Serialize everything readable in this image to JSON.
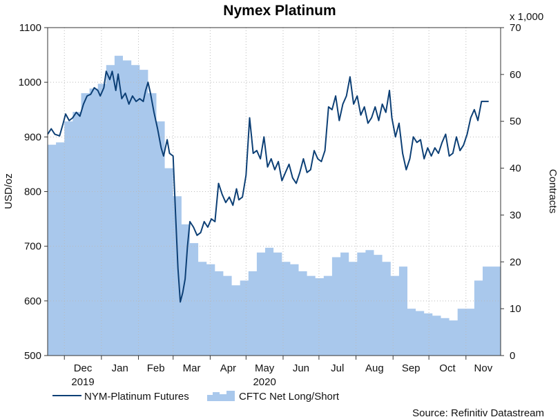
{
  "chart_data": {
    "type": "line",
    "title": "Nymex Platinum",
    "ylabel_left": "USD/oz",
    "ylabel_right": "Contracts",
    "right_multiplier": "x 1,000",
    "ylim_left": [
      500,
      1100
    ],
    "ylim_right": [
      0,
      70
    ],
    "yticks_left": [
      "500",
      "600",
      "700",
      "800",
      "900",
      "1000",
      "1100"
    ],
    "yticks_right": [
      "0",
      "10",
      "20",
      "30",
      "40",
      "50",
      "60",
      "70"
    ],
    "x_start": "2019-11-17",
    "x_end": "2020-11-30",
    "months": [
      {
        "label": "Dec",
        "date": "2019-12-01",
        "year": "2019"
      },
      {
        "label": "Jan",
        "date": "2020-01-01"
      },
      {
        "label": "Feb",
        "date": "2020-02-01"
      },
      {
        "label": "Mar",
        "date": "2020-03-01"
      },
      {
        "label": "Apr",
        "date": "2020-04-01"
      },
      {
        "label": "May",
        "date": "2020-05-01",
        "year": "2020"
      },
      {
        "label": "Jun",
        "date": "2020-06-01"
      },
      {
        "label": "Jul",
        "date": "2020-07-01"
      },
      {
        "label": "Aug",
        "date": "2020-08-01"
      },
      {
        "label": "Sep",
        "date": "2020-09-01"
      },
      {
        "label": "Oct",
        "date": "2020-10-01"
      },
      {
        "label": "Nov",
        "date": "2020-11-01"
      }
    ],
    "grid": true,
    "legend_position": "bottom",
    "source": "Source: Refinitiv Datastream",
    "series": [
      {
        "name": "NYM-Platinum Futures",
        "type": "line",
        "axis": "left",
        "color": "#0c3f75",
        "points": [
          [
            "2019-11-17",
            905
          ],
          [
            "2019-11-20",
            915
          ],
          [
            "2019-11-23",
            905
          ],
          [
            "2019-11-27",
            902
          ],
          [
            "2019-11-30",
            925
          ],
          [
            "2019-12-02",
            942
          ],
          [
            "2019-12-05",
            930
          ],
          [
            "2019-12-08",
            935
          ],
          [
            "2019-12-11",
            945
          ],
          [
            "2019-12-14",
            938
          ],
          [
            "2019-12-17",
            960
          ],
          [
            "2019-12-20",
            975
          ],
          [
            "2019-12-23",
            978
          ],
          [
            "2019-12-26",
            990
          ],
          [
            "2019-12-29",
            985
          ],
          [
            "2019-12-31",
            975
          ],
          [
            "2020-01-03",
            990
          ],
          [
            "2020-01-05",
            1020
          ],
          [
            "2020-01-08",
            1005
          ],
          [
            "2020-01-10",
            1020
          ],
          [
            "2020-01-13",
            985
          ],
          [
            "2020-01-15",
            1015
          ],
          [
            "2020-01-18",
            970
          ],
          [
            "2020-01-21",
            980
          ],
          [
            "2020-01-24",
            960
          ],
          [
            "2020-01-27",
            975
          ],
          [
            "2020-01-30",
            965
          ],
          [
            "2020-02-02",
            970
          ],
          [
            "2020-02-05",
            965
          ],
          [
            "2020-02-07",
            985
          ],
          [
            "2020-02-09",
            1000
          ],
          [
            "2020-02-11",
            980
          ],
          [
            "2020-02-14",
            945
          ],
          [
            "2020-02-17",
            915
          ],
          [
            "2020-02-20",
            880
          ],
          [
            "2020-02-22",
            865
          ],
          [
            "2020-02-25",
            895
          ],
          [
            "2020-02-27",
            870
          ],
          [
            "2020-03-01",
            865
          ],
          [
            "2020-03-03",
            760
          ],
          [
            "2020-03-05",
            660
          ],
          [
            "2020-03-07",
            598
          ],
          [
            "2020-03-09",
            615
          ],
          [
            "2020-03-11",
            640
          ],
          [
            "2020-03-13",
            700
          ],
          [
            "2020-03-15",
            745
          ],
          [
            "2020-03-18",
            735
          ],
          [
            "2020-03-21",
            720
          ],
          [
            "2020-03-24",
            725
          ],
          [
            "2020-03-27",
            745
          ],
          [
            "2020-03-30",
            735
          ],
          [
            "2020-04-02",
            750
          ],
          [
            "2020-04-05",
            745
          ],
          [
            "2020-04-08",
            815
          ],
          [
            "2020-04-11",
            795
          ],
          [
            "2020-04-14",
            780
          ],
          [
            "2020-04-17",
            790
          ],
          [
            "2020-04-20",
            775
          ],
          [
            "2020-04-23",
            805
          ],
          [
            "2020-04-25",
            785
          ],
          [
            "2020-04-28",
            790
          ],
          [
            "2020-05-01",
            830
          ],
          [
            "2020-05-04",
            935
          ],
          [
            "2020-05-07",
            870
          ],
          [
            "2020-05-10",
            875
          ],
          [
            "2020-05-13",
            860
          ],
          [
            "2020-05-16",
            900
          ],
          [
            "2020-05-19",
            845
          ],
          [
            "2020-05-22",
            860
          ],
          [
            "2020-05-25",
            840
          ],
          [
            "2020-05-28",
            855
          ],
          [
            "2020-05-31",
            820
          ],
          [
            "2020-06-03",
            835
          ],
          [
            "2020-06-06",
            850
          ],
          [
            "2020-06-09",
            825
          ],
          [
            "2020-06-12",
            815
          ],
          [
            "2020-06-15",
            835
          ],
          [
            "2020-06-18",
            860
          ],
          [
            "2020-06-21",
            835
          ],
          [
            "2020-06-24",
            840
          ],
          [
            "2020-06-27",
            875
          ],
          [
            "2020-06-30",
            860
          ],
          [
            "2020-07-03",
            855
          ],
          [
            "2020-07-06",
            875
          ],
          [
            "2020-07-09",
            955
          ],
          [
            "2020-07-12",
            950
          ],
          [
            "2020-07-15",
            975
          ],
          [
            "2020-07-18",
            930
          ],
          [
            "2020-07-21",
            960
          ],
          [
            "2020-07-24",
            975
          ],
          [
            "2020-07-27",
            1010
          ],
          [
            "2020-07-30",
            960
          ],
          [
            "2020-08-02",
            975
          ],
          [
            "2020-08-05",
            940
          ],
          [
            "2020-08-08",
            955
          ],
          [
            "2020-08-11",
            925
          ],
          [
            "2020-08-14",
            935
          ],
          [
            "2020-08-17",
            955
          ],
          [
            "2020-08-20",
            930
          ],
          [
            "2020-08-23",
            960
          ],
          [
            "2020-08-26",
            945
          ],
          [
            "2020-08-29",
            985
          ],
          [
            "2020-08-31",
            935
          ],
          [
            "2020-09-03",
            900
          ],
          [
            "2020-09-06",
            925
          ],
          [
            "2020-09-09",
            870
          ],
          [
            "2020-09-12",
            840
          ],
          [
            "2020-09-15",
            860
          ],
          [
            "2020-09-18",
            900
          ],
          [
            "2020-09-21",
            890
          ],
          [
            "2020-09-24",
            895
          ],
          [
            "2020-09-27",
            860
          ],
          [
            "2020-09-30",
            880
          ],
          [
            "2020-10-03",
            865
          ],
          [
            "2020-10-06",
            880
          ],
          [
            "2020-10-09",
            870
          ],
          [
            "2020-10-12",
            890
          ],
          [
            "2020-10-15",
            905
          ],
          [
            "2020-10-18",
            865
          ],
          [
            "2020-10-21",
            870
          ],
          [
            "2020-10-24",
            900
          ],
          [
            "2020-10-27",
            875
          ],
          [
            "2020-10-30",
            885
          ],
          [
            "2020-11-02",
            905
          ],
          [
            "2020-11-05",
            935
          ],
          [
            "2020-11-08",
            950
          ],
          [
            "2020-11-11",
            930
          ],
          [
            "2020-11-14",
            965
          ],
          [
            "2020-11-17",
            965
          ],
          [
            "2020-11-20",
            965
          ]
        ]
      },
      {
        "name": "CFTC Net Long/Short",
        "type": "area",
        "axis": "right",
        "color": "#a9c8ec",
        "points": [
          [
            "2019-11-17",
            45
          ],
          [
            "2019-11-24",
            45.5
          ],
          [
            "2019-12-01",
            50
          ],
          [
            "2019-12-08",
            52
          ],
          [
            "2019-12-15",
            56
          ],
          [
            "2019-12-22",
            57
          ],
          [
            "2019-12-29",
            58
          ],
          [
            "2020-01-05",
            62
          ],
          [
            "2020-01-12",
            64
          ],
          [
            "2020-01-19",
            63
          ],
          [
            "2020-01-26",
            62
          ],
          [
            "2020-02-02",
            61
          ],
          [
            "2020-02-09",
            56
          ],
          [
            "2020-02-16",
            50
          ],
          [
            "2020-02-23",
            40
          ],
          [
            "2020-03-01",
            34
          ],
          [
            "2020-03-08",
            28
          ],
          [
            "2020-03-15",
            24
          ],
          [
            "2020-03-22",
            20
          ],
          [
            "2020-03-29",
            19.5
          ],
          [
            "2020-04-05",
            18
          ],
          [
            "2020-04-12",
            17
          ],
          [
            "2020-04-19",
            15
          ],
          [
            "2020-04-26",
            16
          ],
          [
            "2020-05-03",
            18
          ],
          [
            "2020-05-10",
            22
          ],
          [
            "2020-05-17",
            23
          ],
          [
            "2020-05-24",
            22
          ],
          [
            "2020-05-31",
            20
          ],
          [
            "2020-06-07",
            19.5
          ],
          [
            "2020-06-14",
            18
          ],
          [
            "2020-06-21",
            17
          ],
          [
            "2020-06-28",
            16.5
          ],
          [
            "2020-07-05",
            17
          ],
          [
            "2020-07-12",
            21
          ],
          [
            "2020-07-19",
            22
          ],
          [
            "2020-07-26",
            20
          ],
          [
            "2020-08-02",
            22
          ],
          [
            "2020-08-09",
            22.5
          ],
          [
            "2020-08-16",
            21.5
          ],
          [
            "2020-08-23",
            20
          ],
          [
            "2020-08-30",
            17
          ],
          [
            "2020-09-06",
            19
          ],
          [
            "2020-09-13",
            10
          ],
          [
            "2020-09-20",
            9.5
          ],
          [
            "2020-09-27",
            9
          ],
          [
            "2020-10-04",
            8.5
          ],
          [
            "2020-10-11",
            8
          ],
          [
            "2020-10-18",
            7.5
          ],
          [
            "2020-10-25",
            10
          ],
          [
            "2020-11-01",
            10
          ],
          [
            "2020-11-08",
            16
          ],
          [
            "2020-11-15",
            19
          ],
          [
            "2020-11-22",
            19
          ]
        ]
      }
    ]
  }
}
